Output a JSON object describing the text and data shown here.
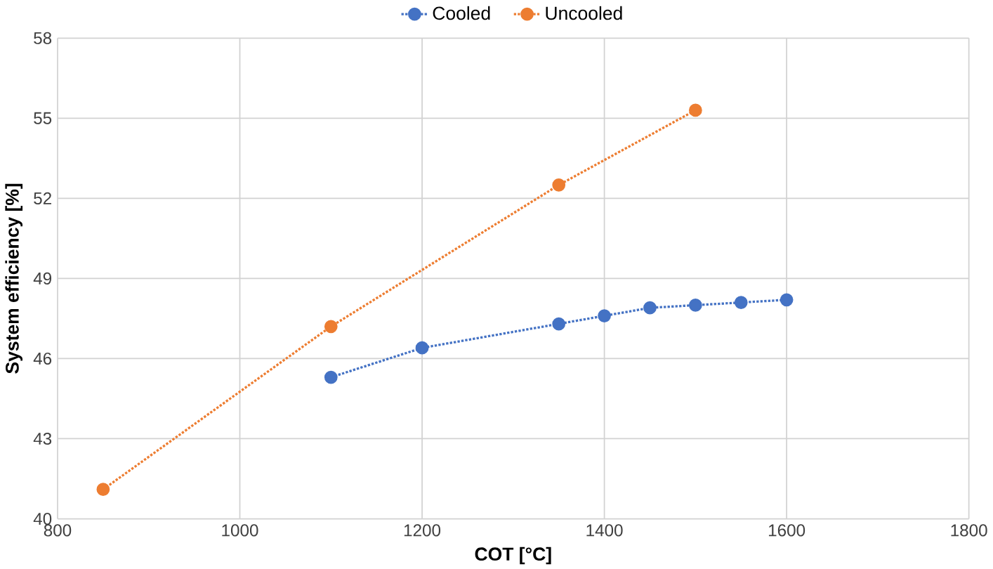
{
  "chart_data": {
    "type": "line",
    "xlabel": "COT [°C]",
    "ylabel": "System efficiency [%]",
    "xlim": [
      800,
      1800
    ],
    "xticks": [
      800,
      1000,
      1200,
      1400,
      1600,
      1800
    ],
    "ylim": [
      40,
      58
    ],
    "yticks": [
      40,
      43,
      46,
      49,
      52,
      55,
      58
    ],
    "grid": true,
    "legend": "top",
    "marker": "circle",
    "line_style": "dotted",
    "series": [
      {
        "name": "Cooled",
        "color": "#4472c4",
        "x": [
          1100,
          1200,
          1350,
          1400,
          1450,
          1500,
          1550,
          1600
        ],
        "values": [
          45.3,
          46.4,
          47.3,
          47.6,
          47.9,
          48.0,
          48.1,
          48.2
        ]
      },
      {
        "name": "Uncooled",
        "color": "#ed7d31",
        "x": [
          850,
          1100,
          1350,
          1500
        ],
        "values": [
          41.1,
          47.2,
          52.5,
          55.3
        ]
      }
    ]
  }
}
